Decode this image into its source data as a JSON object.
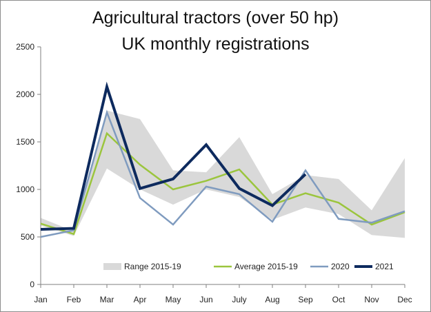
{
  "chart_data": {
    "type": "line",
    "title": "Agricultural tractors (over 50 hp)",
    "subtitle": "UK monthly registrations",
    "categories": [
      "Jan",
      "Feb",
      "Mar",
      "Apr",
      "May",
      "Jun",
      "July",
      "Aug",
      "Sep",
      "Oct",
      "Nov",
      "Dec"
    ],
    "ylim": [
      0,
      2500
    ],
    "yticks": [
      0,
      500,
      1000,
      1500,
      2000,
      2500
    ],
    "grid": false,
    "legend_position": "bottom",
    "range": {
      "name": "Range 2015-19",
      "color": "#d9d9d9",
      "low": [
        620,
        510,
        1220,
        1000,
        840,
        1000,
        920,
        680,
        810,
        740,
        520,
        490
      ],
      "high": [
        700,
        560,
        1830,
        1740,
        1200,
        1180,
        1550,
        950,
        1150,
        1110,
        780,
        1330
      ]
    },
    "series": [
      {
        "name": "Average 2015-19",
        "color": "#9bc53d",
        "width": 2.5,
        "values": [
          640,
          530,
          1590,
          1260,
          1000,
          1090,
          1210,
          840,
          960,
          860,
          630,
          760
        ]
      },
      {
        "name": "2020",
        "color": "#7f9bbf",
        "width": 2.5,
        "values": [
          500,
          570,
          1810,
          910,
          630,
          1030,
          950,
          660,
          1200,
          690,
          650,
          770
        ]
      },
      {
        "name": "2021",
        "color": "#0d2a5e",
        "width": 4,
        "values": [
          580,
          590,
          2080,
          1010,
          1110,
          1470,
          1010,
          830,
          1160,
          null,
          null,
          null
        ]
      }
    ]
  }
}
